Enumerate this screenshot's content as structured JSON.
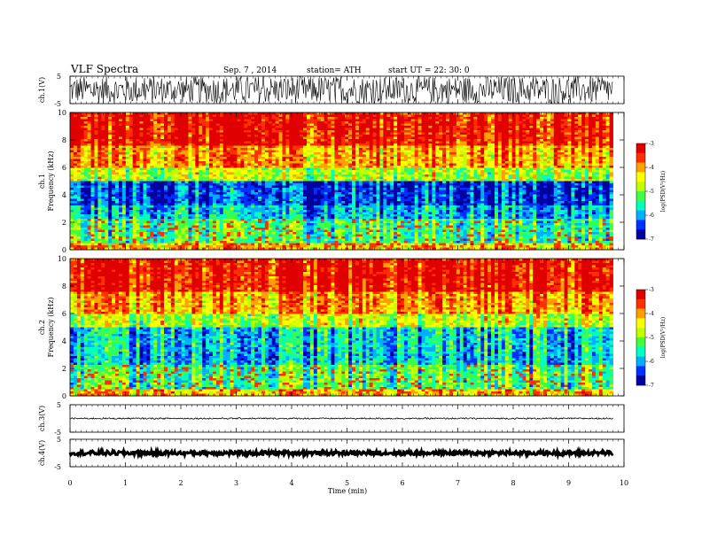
{
  "header": {
    "title": "VLF  Spectra",
    "date": "Sep. 7  , 2014",
    "station": "station= ATH",
    "start": "start  UT  =    22: 30: 0"
  },
  "chart_data": {
    "type": "heatmap",
    "xlabel": "Time  (min)",
    "xlim": [
      0,
      10
    ],
    "x_ticks": [
      "0",
      "1",
      "2",
      "3",
      "4",
      "5",
      "6",
      "7",
      "8",
      "9",
      "10"
    ],
    "data_end_min": 9.8,
    "panels": [
      {
        "kind": "waveform",
        "ylabel": "ch.1(V)",
        "ylim": [
          -5,
          5
        ],
        "y_ticks": [
          "5",
          "-5"
        ],
        "noise_amplitude": 1.0
      },
      {
        "kind": "spectrogram",
        "channel_label": "ch.1",
        "ylabel": "Frequency  (kHz)",
        "ylim": [
          0,
          10
        ],
        "y_ticks": [
          "0",
          "2",
          "4",
          "6",
          "8",
          "10"
        ],
        "colorbar": {
          "label": "log(PSD(V²/Hz)",
          "range": [
            -7,
            -3
          ],
          "ticks": [
            "-3",
            "-4",
            "-5",
            "-6",
            "-7"
          ]
        }
      },
      {
        "kind": "spectrogram",
        "channel_label": "ch.2",
        "ylabel": "Frequency  (kHz)",
        "ylim": [
          0,
          10
        ],
        "y_ticks": [
          "0",
          "2",
          "4",
          "6",
          "8",
          "10"
        ],
        "colorbar": {
          "label": "log(PSD(V²/Hz)",
          "range": [
            -7,
            -3
          ],
          "ticks": [
            "-3",
            "-4",
            "-5",
            "-6",
            "-7"
          ]
        }
      },
      {
        "kind": "waveform",
        "ylabel": "ch.3(V)",
        "ylim": [
          -5,
          5
        ],
        "y_ticks": [
          "5",
          "-5"
        ],
        "noise_amplitude": 0.05
      },
      {
        "kind": "waveform",
        "ylabel": "ch.4(V)",
        "ylim": [
          -5,
          5
        ],
        "y_ticks": [
          "5",
          "-5"
        ],
        "noise_amplitude": 0.15
      }
    ],
    "colorscale": [
      "#0000a0",
      "#0030ff",
      "#00b0ff",
      "#00ffc0",
      "#40ff40",
      "#c0ff00",
      "#ffff00",
      "#ffa000",
      "#ff3000",
      "#e00000"
    ]
  }
}
